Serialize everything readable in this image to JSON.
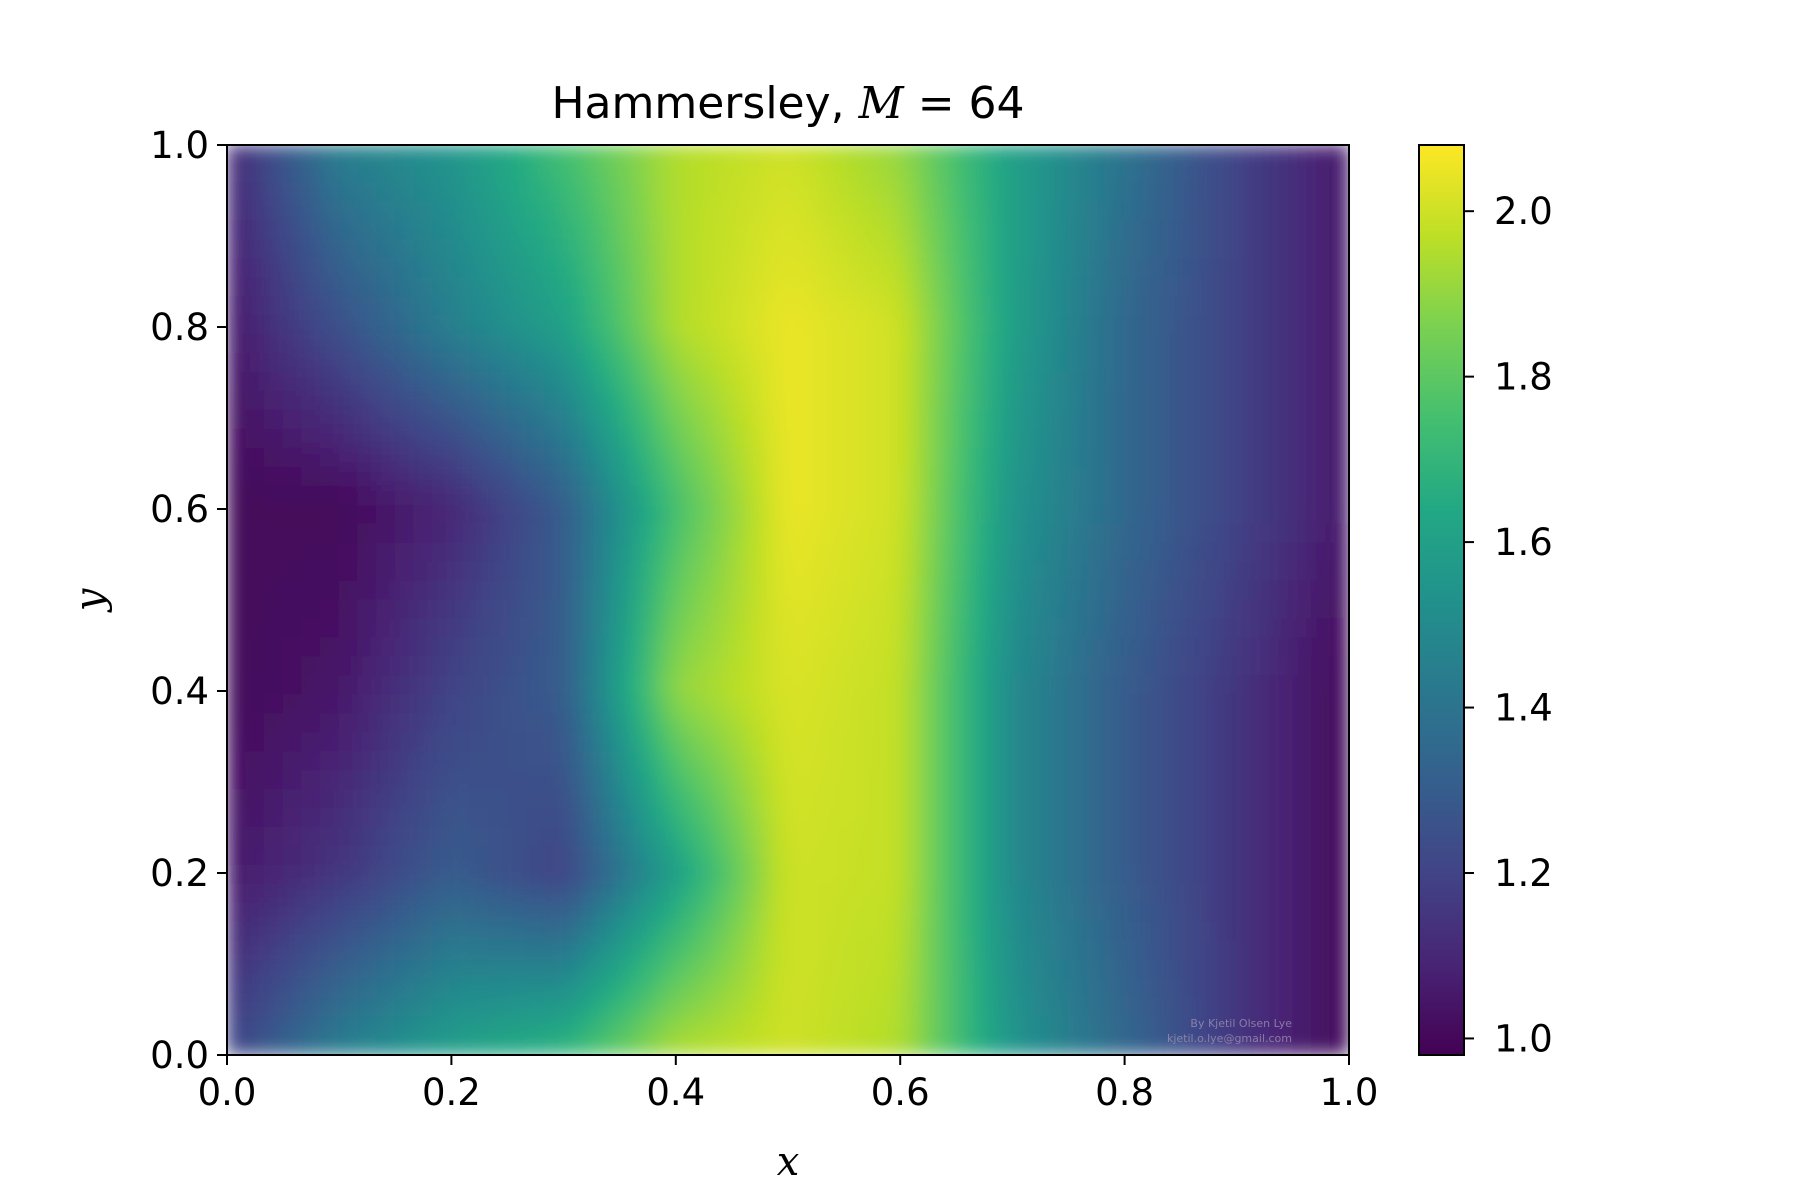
{
  "chart_data": {
    "type": "heatmap",
    "title_text": "Hammersley, ",
    "title_math_var": "M",
    "title_math_rest": " = 64",
    "xlabel": "x",
    "ylabel": "y",
    "xlim": [
      0.0,
      1.0
    ],
    "ylim": [
      0.0,
      1.0
    ],
    "x_ticks": [
      "0.0",
      "0.2",
      "0.4",
      "0.6",
      "0.8",
      "1.0"
    ],
    "y_ticks": [
      "0.0",
      "0.2",
      "0.4",
      "0.6",
      "0.8",
      "1.0"
    ],
    "x_tick_values": [
      0.0,
      0.2,
      0.4,
      0.6,
      0.8,
      1.0
    ],
    "y_tick_values": [
      0.0,
      0.2,
      0.4,
      0.6,
      0.8,
      1.0
    ],
    "colormap": "viridis",
    "colorbar": {
      "range": [
        0.98,
        2.08
      ],
      "ticks": [
        "1.0",
        "1.2",
        "1.4",
        "1.6",
        "1.8",
        "2.0"
      ],
      "tick_values": [
        1.0,
        1.2,
        1.4,
        1.6,
        1.8,
        2.0
      ]
    },
    "grid": false,
    "field_description_samples": {
      "y_values": [
        0.0,
        0.2,
        0.4,
        0.6,
        0.8,
        1.0
      ],
      "rows": [
        {
          "y": 0.0,
          "x": [
            0.0,
            0.1,
            0.2,
            0.3,
            0.4,
            0.5,
            0.6,
            0.7,
            0.8,
            0.9,
            1.0
          ],
          "v": [
            1.2,
            1.45,
            1.6,
            1.7,
            1.95,
            2.0,
            1.95,
            1.55,
            1.35,
            1.15,
            1.0
          ]
        },
        {
          "y": 0.2,
          "x": [
            0.0,
            0.1,
            0.2,
            0.3,
            0.4,
            0.5,
            0.6,
            0.7,
            0.8,
            0.9,
            1.0
          ],
          "v": [
            1.05,
            1.15,
            1.3,
            1.2,
            1.6,
            2.0,
            1.98,
            1.5,
            1.3,
            1.15,
            1.0
          ]
        },
        {
          "y": 0.4,
          "x": [
            0.0,
            0.1,
            0.2,
            0.3,
            0.4,
            0.5,
            0.6,
            0.7,
            0.8,
            0.9,
            1.0
          ],
          "v": [
            1.0,
            1.05,
            1.2,
            1.3,
            1.9,
            2.02,
            1.98,
            1.5,
            1.3,
            1.15,
            1.0
          ]
        },
        {
          "y": 0.6,
          "x": [
            0.0,
            0.1,
            0.2,
            0.3,
            0.4,
            0.5,
            0.6,
            0.7,
            0.8,
            0.9,
            1.0
          ],
          "v": [
            1.0,
            1.0,
            1.1,
            1.3,
            1.75,
            2.05,
            2.0,
            1.55,
            1.35,
            1.2,
            1.05
          ]
        },
        {
          "y": 0.8,
          "x": [
            0.0,
            0.1,
            0.2,
            0.3,
            0.4,
            0.5,
            0.6,
            0.7,
            0.8,
            0.9,
            1.0
          ],
          "v": [
            1.05,
            1.25,
            1.45,
            1.6,
            1.95,
            2.05,
            2.0,
            1.6,
            1.35,
            1.2,
            1.05
          ]
        },
        {
          "y": 1.0,
          "x": [
            0.0,
            0.1,
            0.2,
            0.3,
            0.4,
            0.5,
            0.6,
            0.7,
            0.8,
            0.9,
            1.0
          ],
          "v": [
            1.1,
            1.45,
            1.55,
            1.75,
            1.95,
            2.0,
            1.9,
            1.6,
            1.4,
            1.2,
            1.05
          ]
        }
      ]
    }
  },
  "credit": {
    "line1": "By Kjetil Olsen Lye",
    "line2": "kjetil.o.lye@gmail.com"
  }
}
